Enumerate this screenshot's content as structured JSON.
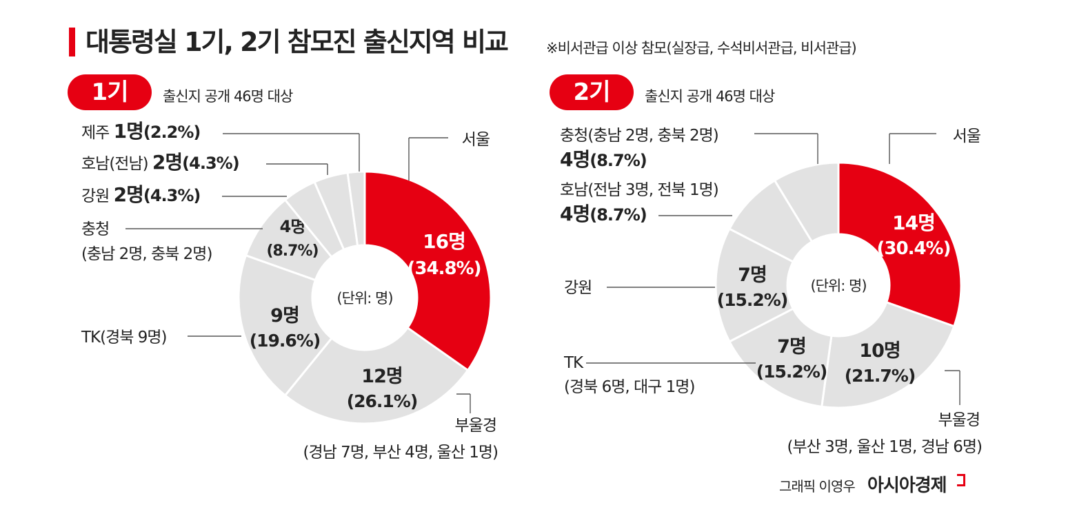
{
  "header": {
    "title": "대통령실 1기, 2기 참모진 출신지역 비교",
    "subtitle": "※비서관급 이상 참모(실장급, 수석비서관급, 비서관급)"
  },
  "panels": [
    {
      "badge": "1기",
      "note": "출신지 공개 46명 대상",
      "center_label": "(단위: 명)"
    },
    {
      "badge": "2기",
      "note": "출신지 공개 46명 대상",
      "center_label": "(단위: 명)"
    }
  ],
  "footer": {
    "credit": "그래픽 이영우",
    "brand": "아시아경제"
  },
  "colors": {
    "accent": "#e60012",
    "slice": "#e2e2e2",
    "text": "#222222",
    "leader": "#555555"
  },
  "chart_data": [
    {
      "type": "donut",
      "title": "1기",
      "unit": "명",
      "slices": [
        {
          "region": "서울",
          "value": 16,
          "count_label": "16명",
          "pct_label": "(34.8%)",
          "highlight": true
        },
        {
          "region": "부울경",
          "detail": "(경남 7명, 부산 4명, 울산 1명)",
          "value": 12,
          "count_label": "12명",
          "pct_label": "(26.1%)"
        },
        {
          "region": "TK",
          "detail": "(경북 9명)",
          "value": 9,
          "count_label": "9명",
          "pct_label": "(19.6%)"
        },
        {
          "region": "충청",
          "detail": "(충남 2명, 충북 2명)",
          "value": 4,
          "count_label": "4명",
          "pct_label": "(8.7%)"
        },
        {
          "region": "강원",
          "value": 2,
          "count_label": "2명",
          "pct_label": "(4.3%)"
        },
        {
          "region": "호남",
          "detail": "(전남)",
          "value": 2,
          "count_label": "2명",
          "pct_label": "(4.3%)"
        },
        {
          "region": "제주",
          "value": 1,
          "count_label": "1명",
          "pct_label": "(2.2%)"
        }
      ]
    },
    {
      "type": "donut",
      "title": "2기",
      "unit": "명",
      "slices": [
        {
          "region": "서울",
          "value": 14,
          "count_label": "14명",
          "pct_label": "(30.4%)",
          "highlight": true
        },
        {
          "region": "부울경",
          "detail": "(부산 3명, 울산 1명, 경남 6명)",
          "value": 10,
          "count_label": "10명",
          "pct_label": "(21.7%)"
        },
        {
          "region": "TK",
          "detail": "(경북 6명, 대구 1명)",
          "value": 7,
          "count_label": "7명",
          "pct_label": "(15.2%)"
        },
        {
          "region": "강원",
          "value": 7,
          "count_label": "7명",
          "pct_label": "(15.2%)"
        },
        {
          "region": "호남",
          "detail": "(전남 3명, 전북 1명)",
          "value": 4,
          "count_label": "4명",
          "pct_label": "(8.7%)"
        },
        {
          "region": "충청",
          "detail": "(충남 2명, 충북 2명)",
          "value": 4,
          "count_label": "4명",
          "pct_label": "(8.7%)"
        }
      ]
    }
  ]
}
